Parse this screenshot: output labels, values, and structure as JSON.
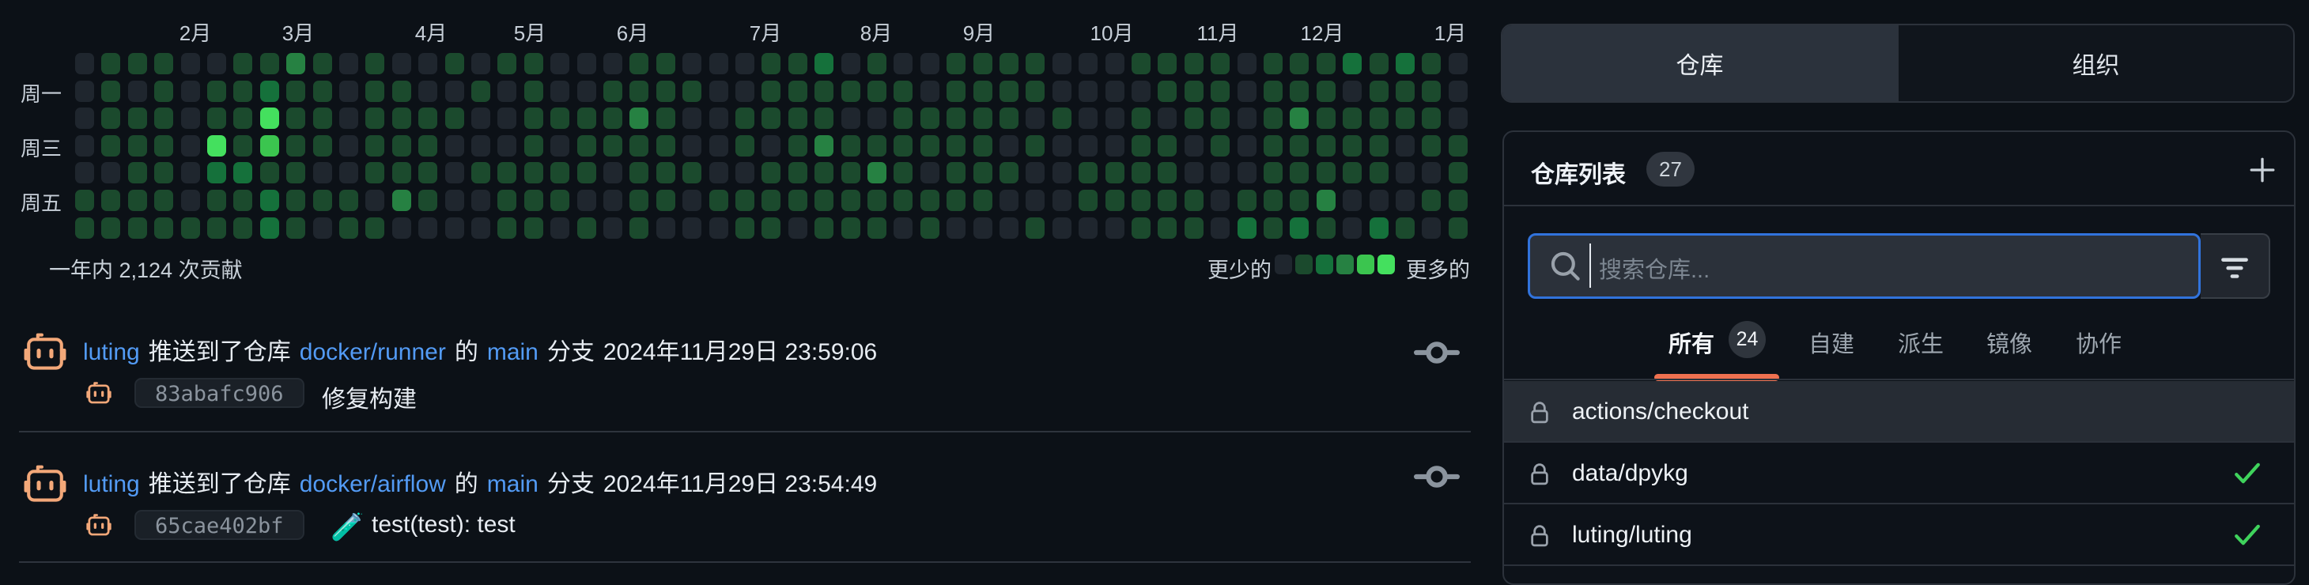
{
  "heatmap": {
    "months": [
      "2月",
      "3月",
      "4月",
      "5月",
      "6月",
      "7月",
      "8月",
      "9月",
      "10月",
      "11月",
      "12月",
      "1月"
    ],
    "weekdays": [
      "周一",
      "周三",
      "周五"
    ],
    "summary": "一年内 2,124 次贡献",
    "legend_less": "更少的",
    "legend_more": "更多的",
    "level_colors": [
      "#1f262e",
      "#1b4a2d",
      "#15713b",
      "#268142",
      "#3bc54f",
      "#44e05e"
    ],
    "chart_data": {
      "type": "heatmap",
      "title": "一年内 2,124 次贡献",
      "total_contributions": "2,124",
      "rows": 7,
      "cols": 53,
      "grid": [
        [
          0,
          1,
          1,
          1,
          0,
          0,
          1,
          1,
          3,
          1,
          0,
          1,
          0,
          0,
          1,
          0,
          1,
          1,
          0,
          0,
          0,
          1,
          1,
          0,
          0,
          0,
          1,
          1,
          2,
          0,
          1,
          0,
          0,
          1,
          1,
          1,
          1,
          0,
          0,
          0,
          1,
          1,
          1,
          1,
          0,
          1,
          1,
          1,
          2,
          1,
          2,
          1,
          0
        ],
        [
          0,
          1,
          0,
          1,
          0,
          1,
          1,
          2,
          1,
          1,
          0,
          1,
          1,
          0,
          0,
          1,
          0,
          1,
          0,
          0,
          1,
          1,
          1,
          1,
          0,
          0,
          1,
          1,
          1,
          1,
          1,
          1,
          0,
          1,
          1,
          1,
          1,
          0,
          0,
          0,
          0,
          1,
          1,
          1,
          0,
          1,
          1,
          1,
          0,
          1,
          1,
          1,
          0
        ],
        [
          0,
          1,
          1,
          1,
          0,
          1,
          1,
          5,
          1,
          1,
          0,
          1,
          1,
          1,
          1,
          0,
          0,
          1,
          1,
          1,
          1,
          3,
          1,
          0,
          0,
          1,
          1,
          1,
          1,
          0,
          0,
          1,
          1,
          1,
          1,
          1,
          0,
          1,
          0,
          0,
          1,
          0,
          1,
          1,
          0,
          1,
          3,
          1,
          1,
          1,
          1,
          1,
          0
        ],
        [
          0,
          1,
          1,
          1,
          0,
          5,
          1,
          4,
          1,
          1,
          0,
          1,
          1,
          1,
          0,
          0,
          0,
          1,
          0,
          1,
          1,
          1,
          1,
          0,
          0,
          1,
          0,
          1,
          3,
          1,
          1,
          1,
          1,
          1,
          1,
          0,
          1,
          0,
          0,
          0,
          1,
          1,
          0,
          1,
          0,
          1,
          1,
          1,
          1,
          1,
          0,
          1,
          1
        ],
        [
          0,
          0,
          1,
          1,
          0,
          2,
          2,
          1,
          1,
          0,
          0,
          1,
          1,
          1,
          0,
          1,
          1,
          1,
          1,
          1,
          0,
          1,
          1,
          1,
          0,
          0,
          1,
          1,
          1,
          1,
          3,
          1,
          0,
          1,
          1,
          1,
          0,
          0,
          1,
          1,
          1,
          1,
          0,
          0,
          0,
          1,
          1,
          1,
          1,
          1,
          0,
          0,
          1
        ],
        [
          1,
          1,
          1,
          1,
          0,
          1,
          1,
          2,
          1,
          1,
          1,
          0,
          3,
          1,
          0,
          0,
          1,
          1,
          1,
          0,
          0,
          1,
          1,
          0,
          1,
          1,
          1,
          1,
          1,
          1,
          1,
          1,
          1,
          1,
          1,
          0,
          0,
          0,
          1,
          1,
          1,
          1,
          1,
          0,
          1,
          1,
          1,
          3,
          0,
          0,
          0,
          1,
          1
        ],
        [
          1,
          1,
          1,
          1,
          1,
          1,
          1,
          2,
          1,
          0,
          1,
          1,
          0,
          0,
          0,
          0,
          1,
          1,
          0,
          1,
          0,
          1,
          0,
          0,
          0,
          1,
          1,
          0,
          1,
          1,
          1,
          0,
          1,
          0,
          0,
          0,
          1,
          0,
          0,
          0,
          1,
          1,
          1,
          0,
          2,
          1,
          2,
          1,
          0,
          2,
          1,
          0,
          1
        ]
      ]
    }
  },
  "feed": [
    {
      "actor": "luting",
      "verb": "推送到了仓库",
      "repo": "docker/runner",
      "particle": "的",
      "branch": "main",
      "branch_word": "分支",
      "time": "2024年11月29日 23:59:06",
      "commit_hash": "83abafc906",
      "commit_emoji": "",
      "commit_message": "修复构建"
    },
    {
      "actor": "luting",
      "verb": "推送到了仓库",
      "repo": "docker/airflow",
      "particle": "的",
      "branch": "main",
      "branch_word": "分支",
      "time": "2024年11月29日 23:54:49",
      "commit_hash": "65cae402bf",
      "commit_emoji": "🧪",
      "commit_message": "test(test): test"
    }
  ],
  "sidebar": {
    "tabs": [
      {
        "label": "仓库",
        "active": true
      },
      {
        "label": "组织",
        "active": false
      }
    ],
    "panel_title": "仓库列表",
    "panel_count": "27",
    "search_placeholder": "搜索仓库...",
    "filters": [
      {
        "label": "所有",
        "count": "24",
        "active": true
      },
      {
        "label": "自建"
      },
      {
        "label": "派生"
      },
      {
        "label": "镜像"
      },
      {
        "label": "协作"
      }
    ],
    "repos": [
      {
        "name": "actions/checkout",
        "private": true,
        "checked": false
      },
      {
        "name": "data/dpykg",
        "private": true,
        "checked": true
      },
      {
        "name": "luting/luting",
        "private": true,
        "checked": true
      }
    ]
  },
  "colors": {
    "accent_blue": "#3173dc",
    "link_blue": "#539bf5",
    "accent_orange": "#ef7150",
    "avatar_orange": "#f3a879",
    "check_green": "#3fd35c"
  }
}
